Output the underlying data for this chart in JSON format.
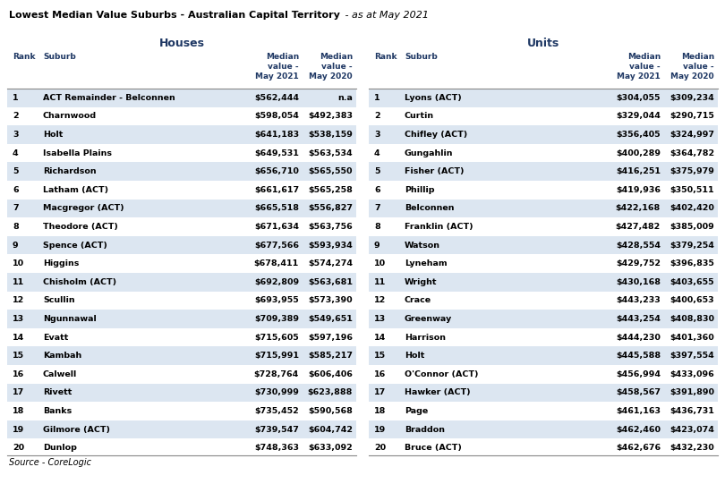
{
  "title_bold": "Lowest Median Value Suburbs - Australian Capital Territory",
  "title_italic": " - as at May 2021",
  "houses_header": "Houses",
  "units_header": "Units",
  "houses": [
    [
      1,
      "ACT Remainder - Belconnen",
      "$562,444",
      "n.a"
    ],
    [
      2,
      "Charnwood",
      "$598,054",
      "$492,383"
    ],
    [
      3,
      "Holt",
      "$641,183",
      "$538,159"
    ],
    [
      4,
      "Isabella Plains",
      "$649,531",
      "$563,534"
    ],
    [
      5,
      "Richardson",
      "$656,710",
      "$565,550"
    ],
    [
      6,
      "Latham (ACT)",
      "$661,617",
      "$565,258"
    ],
    [
      7,
      "Macgregor (ACT)",
      "$665,518",
      "$556,827"
    ],
    [
      8,
      "Theodore (ACT)",
      "$671,634",
      "$563,756"
    ],
    [
      9,
      "Spence (ACT)",
      "$677,566",
      "$593,934"
    ],
    [
      10,
      "Higgins",
      "$678,411",
      "$574,274"
    ],
    [
      11,
      "Chisholm (ACT)",
      "$692,809",
      "$563,681"
    ],
    [
      12,
      "Scullin",
      "$693,955",
      "$573,390"
    ],
    [
      13,
      "Ngunnawal",
      "$709,389",
      "$549,651"
    ],
    [
      14,
      "Evatt",
      "$715,605",
      "$597,196"
    ],
    [
      15,
      "Kambah",
      "$715,991",
      "$585,217"
    ],
    [
      16,
      "Calwell",
      "$728,764",
      "$606,406"
    ],
    [
      17,
      "Rivett",
      "$730,999",
      "$623,888"
    ],
    [
      18,
      "Banks",
      "$735,452",
      "$590,568"
    ],
    [
      19,
      "Gilmore (ACT)",
      "$739,547",
      "$604,742"
    ],
    [
      20,
      "Dunlop",
      "$748,363",
      "$633,092"
    ]
  ],
  "units": [
    [
      1,
      "Lyons (ACT)",
      "$304,055",
      "$309,234"
    ],
    [
      2,
      "Curtin",
      "$329,044",
      "$290,715"
    ],
    [
      3,
      "Chifley (ACT)",
      "$356,405",
      "$324,997"
    ],
    [
      4,
      "Gungahlin",
      "$400,289",
      "$364,782"
    ],
    [
      5,
      "Fisher (ACT)",
      "$416,251",
      "$375,979"
    ],
    [
      6,
      "Phillip",
      "$419,936",
      "$350,511"
    ],
    [
      7,
      "Belconnen",
      "$422,168",
      "$402,420"
    ],
    [
      8,
      "Franklin (ACT)",
      "$427,482",
      "$385,009"
    ],
    [
      9,
      "Watson",
      "$428,554",
      "$379,254"
    ],
    [
      10,
      "Lyneham",
      "$429,752",
      "$396,835"
    ],
    [
      11,
      "Wright",
      "$430,168",
      "$403,655"
    ],
    [
      12,
      "Crace",
      "$443,233",
      "$400,653"
    ],
    [
      13,
      "Greenway",
      "$443,254",
      "$408,830"
    ],
    [
      14,
      "Harrison",
      "$444,230",
      "$401,360"
    ],
    [
      15,
      "Holt",
      "$445,588",
      "$397,554"
    ],
    [
      16,
      "O'Connor (ACT)",
      "$456,994",
      "$433,096"
    ],
    [
      17,
      "Hawker (ACT)",
      "$458,567",
      "$391,890"
    ],
    [
      18,
      "Page",
      "$461,163",
      "$436,731"
    ],
    [
      19,
      "Braddon",
      "$462,460",
      "$423,074"
    ],
    [
      20,
      "Bruce (ACT)",
      "$462,676",
      "$432,230"
    ]
  ],
  "source": "Source - CoreLogic",
  "bg_color": "#ffffff",
  "row_even_color": "#dce6f1",
  "row_odd_color": "#ffffff",
  "section_header_color": "#1f3864",
  "col_header_color": "#1f3864"
}
